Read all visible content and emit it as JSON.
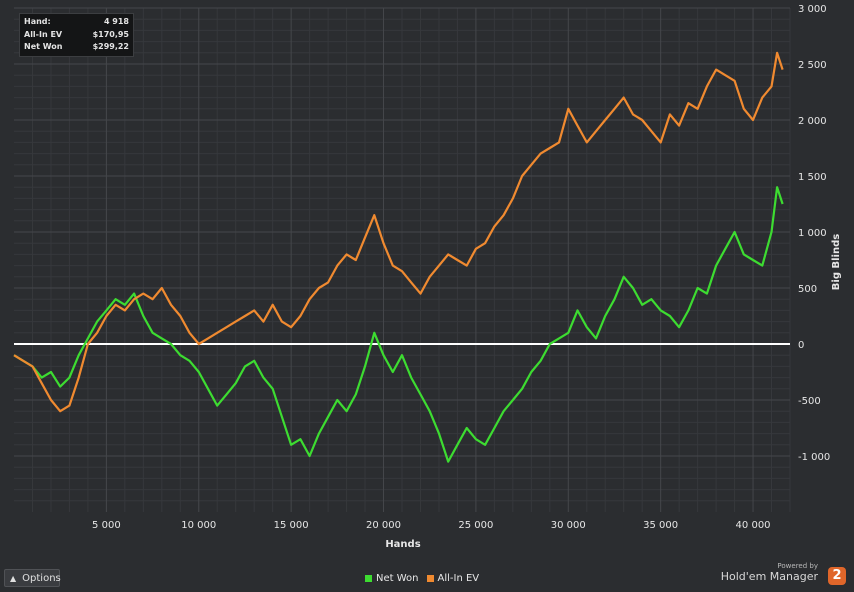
{
  "info_box": {
    "hand_label": "Hand:",
    "hand_value": "4 918",
    "allin_label": "All-In EV",
    "allin_value": "$170,95",
    "netwon_label": "Net Won",
    "netwon_value": "$299,22"
  },
  "options_button": {
    "label": "Options",
    "icon": "caret-up-icon"
  },
  "legend": [
    {
      "label": "Net Won",
      "color": "#3ddc31"
    },
    {
      "label": "All-In EV",
      "color": "#f08a30"
    }
  ],
  "branding": {
    "powered_by": "Powered by",
    "name": "Hold'em Manager",
    "logo": "2"
  },
  "chart_data": {
    "type": "line",
    "xlabel": "Hands",
    "ylabel": "Big Blinds",
    "xlim": [
      0,
      42000
    ],
    "ylim": [
      -1500,
      3000
    ],
    "x_ticks": [
      5000,
      10000,
      15000,
      20000,
      25000,
      30000,
      35000,
      40000
    ],
    "x_tick_labels": [
      "5 000",
      "10 000",
      "15 000",
      "20 000",
      "25 000",
      "30 000",
      "35 000",
      "40 000"
    ],
    "y_ticks": [
      3000,
      2500,
      2000,
      1500,
      1000,
      500,
      0,
      -500,
      -1000
    ],
    "y_tick_labels": [
      "3 000",
      "2 500",
      "2 000",
      "1 500",
      "1 000",
      "500",
      "0",
      "-500",
      "-1 000"
    ],
    "grid": true,
    "zero_line": true,
    "legend_position": "bottom-center",
    "series": [
      {
        "name": "Net Won",
        "color": "#3ddc31",
        "x": [
          0,
          500,
          1000,
          1500,
          2000,
          2500,
          3000,
          3500,
          4000,
          4500,
          5000,
          5500,
          6000,
          6500,
          7000,
          7500,
          8000,
          8500,
          9000,
          9500,
          10000,
          10500,
          11000,
          11500,
          12000,
          12500,
          13000,
          13500,
          14000,
          14500,
          15000,
          15500,
          16000,
          16500,
          17000,
          17500,
          18000,
          18500,
          19000,
          19500,
          20000,
          20500,
          21000,
          21500,
          22000,
          22500,
          23000,
          23500,
          24000,
          24500,
          25000,
          25500,
          26000,
          26500,
          27000,
          27500,
          28000,
          28500,
          29000,
          29500,
          30000,
          30500,
          31000,
          31500,
          32000,
          32500,
          33000,
          33500,
          34000,
          34500,
          35000,
          35500,
          36000,
          36500,
          37000,
          37500,
          38000,
          38500,
          39000,
          39500,
          40000,
          40500,
          41000,
          41300,
          41600
        ],
        "values": [
          -100,
          -150,
          -200,
          -300,
          -250,
          -380,
          -300,
          -100,
          50,
          200,
          300,
          400,
          350,
          450,
          250,
          100,
          50,
          0,
          -100,
          -150,
          -250,
          -400,
          -550,
          -450,
          -350,
          -200,
          -150,
          -300,
          -400,
          -650,
          -900,
          -850,
          -1000,
          -800,
          -650,
          -500,
          -600,
          -450,
          -200,
          100,
          -100,
          -250,
          -100,
          -300,
          -450,
          -600,
          -800,
          -1050,
          -900,
          -750,
          -850,
          -900,
          -750,
          -600,
          -500,
          -400,
          -250,
          -150,
          0,
          50,
          100,
          300,
          150,
          50,
          250,
          400,
          600,
          500,
          350,
          400,
          300,
          250,
          150,
          300,
          500,
          450,
          700,
          850,
          1000,
          800,
          750,
          700,
          1000,
          1400,
          1250
        ]
      },
      {
        "name": "All-In EV",
        "color": "#f08a30",
        "x": [
          0,
          500,
          1000,
          1500,
          2000,
          2500,
          3000,
          3500,
          4000,
          4500,
          5000,
          5500,
          6000,
          6500,
          7000,
          7500,
          8000,
          8500,
          9000,
          9500,
          10000,
          10500,
          11000,
          11500,
          12000,
          12500,
          13000,
          13500,
          14000,
          14500,
          15000,
          15500,
          16000,
          16500,
          17000,
          17500,
          18000,
          18500,
          19000,
          19500,
          20000,
          20500,
          21000,
          21500,
          22000,
          22500,
          23000,
          23500,
          24000,
          24500,
          25000,
          25500,
          26000,
          26500,
          27000,
          27500,
          28000,
          28500,
          29000,
          29500,
          30000,
          30500,
          31000,
          31500,
          32000,
          32500,
          33000,
          33500,
          34000,
          34500,
          35000,
          35500,
          36000,
          36500,
          37000,
          37500,
          38000,
          38500,
          39000,
          39500,
          40000,
          40500,
          41000,
          41300,
          41600
        ],
        "values": [
          -100,
          -150,
          -200,
          -350,
          -500,
          -600,
          -550,
          -300,
          0,
          100,
          250,
          350,
          300,
          400,
          450,
          400,
          500,
          350,
          250,
          100,
          0,
          50,
          100,
          150,
          200,
          250,
          300,
          200,
          350,
          200,
          150,
          250,
          400,
          500,
          550,
          700,
          800,
          750,
          950,
          1150,
          900,
          700,
          650,
          550,
          450,
          600,
          700,
          800,
          750,
          700,
          850,
          900,
          1050,
          1150,
          1300,
          1500,
          1600,
          1700,
          1750,
          1800,
          2100,
          1950,
          1800,
          1900,
          2000,
          2100,
          2200,
          2050,
          2000,
          1900,
          1800,
          2050,
          1950,
          2150,
          2100,
          2300,
          2450,
          2400,
          2350,
          2100,
          2000,
          2200,
          2300,
          2600,
          2450
        ]
      }
    ]
  }
}
